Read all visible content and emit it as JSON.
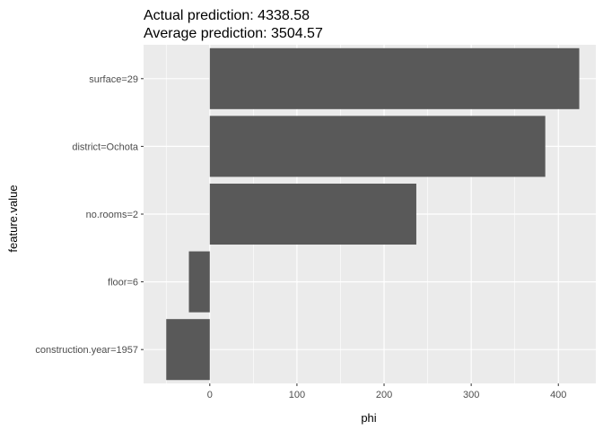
{
  "chart_data": {
    "type": "bar",
    "orientation": "horizontal",
    "title": [
      "Actual prediction: 4338.58",
      "Average prediction: 3504.57"
    ],
    "xlabel": "phi",
    "ylabel": "feature.value",
    "categories": [
      "surface=29",
      "district=Ochota",
      "no.rooms=2",
      "floor=6",
      "construction.year=1957"
    ],
    "values": [
      424,
      385,
      237,
      -24,
      -50
    ],
    "xlim": [
      -76,
      443
    ],
    "xticks": [
      0,
      100,
      200,
      300,
      400
    ],
    "grid": true,
    "legend": "none",
    "colors": {
      "bar": "#595959",
      "panel": "#ebebeb",
      "grid": "#ffffff"
    }
  }
}
